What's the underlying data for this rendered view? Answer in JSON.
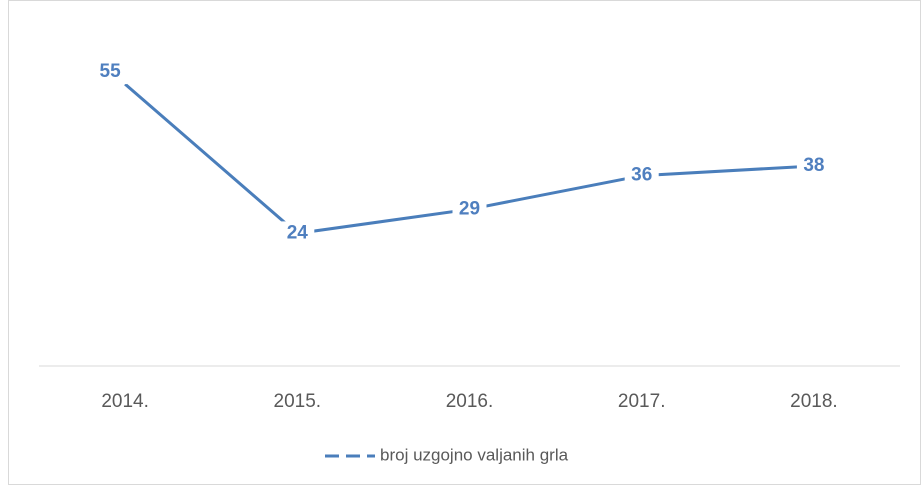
{
  "chart_data": {
    "type": "line",
    "categories": [
      "2014.",
      "2015.",
      "2016.",
      "2017.",
      "2018."
    ],
    "series": [
      {
        "name": "broj uzgojno valjanih grla",
        "color": "#4a7ebb",
        "values": [
          55,
          24,
          29,
          36,
          38
        ]
      }
    ],
    "ylim": [
      0,
      60
    ]
  }
}
